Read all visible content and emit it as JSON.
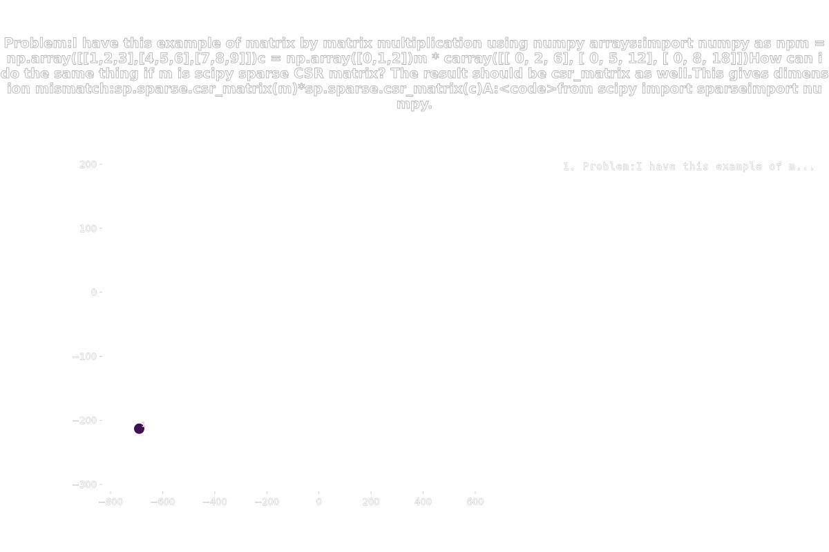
{
  "chart_data": {
    "type": "scatter",
    "title": "Problem:I have this example of matrix by matrix multiplication using numpy arrays:import numpy as npm = np.array([[1,2,3],[4,5,6],[7,8,9]])c = np.array([0,1,2])m * carray([[ 0, 2, 6], [ 0, 5, 12], [ 0, 8, 18]])How can i do the same thing if m is scipy sparse CSR matrix? The result should be csr_matrix as well.This gives dimension mismatch:sp.sparse.csr_matrix(m)*sp.sparse.csr_matrix(c)A:<code>from scipy import sparseimport numpy.",
    "xlabel": "",
    "ylabel": "",
    "xlim": [
      -820,
      680
    ],
    "ylim": [
      -310,
      210
    ],
    "xticks": [
      -800,
      -600,
      -400,
      -200,
      0,
      200,
      400,
      600
    ],
    "xtick_labels": [
      "−800",
      "−600",
      "−400",
      "−200",
      "0",
      "200",
      "400",
      "600"
    ],
    "yticks": [
      200,
      100,
      0,
      -100,
      -200,
      -300
    ],
    "ytick_labels": [
      "200",
      "100",
      "0",
      "−100",
      "−200",
      "−300"
    ],
    "grid": false,
    "legend_placement": "top-right",
    "legend": [
      "1. Problem:I have this example of m..."
    ],
    "points": [
      {
        "x": -690,
        "y": -213,
        "label": "1",
        "color": "#3f0f4f"
      }
    ]
  }
}
